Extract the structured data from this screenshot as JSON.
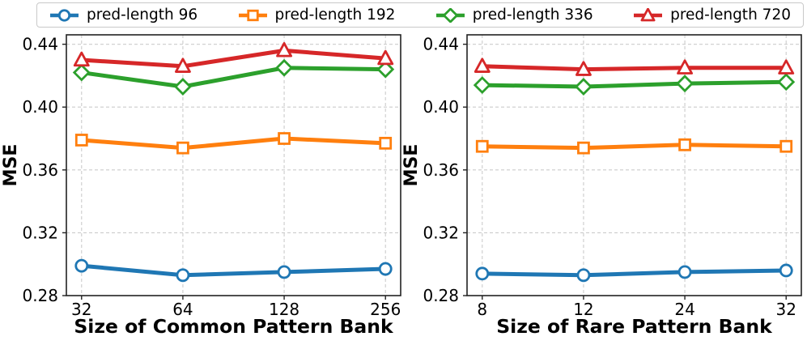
{
  "figure": {
    "ylabel": "MSE",
    "background": "#ffffff",
    "grid_color": "#cccccc",
    "spine_color": "#222222",
    "text_color": "#000000"
  },
  "legend": {
    "position": "top-shared",
    "items": [
      {
        "label": "pred-length 96",
        "marker": "circle",
        "color": "#1f77b4"
      },
      {
        "label": "pred-length 192",
        "marker": "square",
        "color": "#ff7f0e"
      },
      {
        "label": "pred-length 336",
        "marker": "diamond",
        "color": "#2ca02c"
      },
      {
        "label": "pred-length 720",
        "marker": "triangle",
        "color": "#d62728"
      }
    ]
  },
  "chart_data": [
    {
      "type": "line",
      "title": "",
      "xlabel": "Size of Common Pattern Bank",
      "ylabel": "MSE",
      "categories": [
        "32",
        "64",
        "128",
        "256"
      ],
      "yticks": [
        0.28,
        0.32,
        0.36,
        0.4,
        0.44
      ],
      "ylim": [
        0.28,
        0.446
      ],
      "grid": true,
      "series": [
        {
          "name": "pred-length 96",
          "color": "#1f77b4",
          "marker": "circle",
          "values": [
            0.299,
            0.293,
            0.295,
            0.297
          ]
        },
        {
          "name": "pred-length 192",
          "color": "#ff7f0e",
          "marker": "square",
          "values": [
            0.379,
            0.374,
            0.38,
            0.377
          ]
        },
        {
          "name": "pred-length 336",
          "color": "#2ca02c",
          "marker": "diamond",
          "values": [
            0.422,
            0.413,
            0.425,
            0.424
          ]
        },
        {
          "name": "pred-length 720",
          "color": "#d62728",
          "marker": "triangle",
          "values": [
            0.43,
            0.426,
            0.436,
            0.431
          ]
        }
      ]
    },
    {
      "type": "line",
      "title": "",
      "xlabel": "Size of Rare Pattern Bank",
      "ylabel": "MSE",
      "categories": [
        "8",
        "12",
        "24",
        "32"
      ],
      "yticks": [
        0.28,
        0.32,
        0.36,
        0.4,
        0.44
      ],
      "ylim": [
        0.28,
        0.446
      ],
      "grid": true,
      "series": [
        {
          "name": "pred-length 96",
          "color": "#1f77b4",
          "marker": "circle",
          "values": [
            0.294,
            0.293,
            0.295,
            0.296
          ]
        },
        {
          "name": "pred-length 192",
          "color": "#ff7f0e",
          "marker": "square",
          "values": [
            0.375,
            0.374,
            0.376,
            0.375
          ]
        },
        {
          "name": "pred-length 336",
          "color": "#2ca02c",
          "marker": "diamond",
          "values": [
            0.414,
            0.413,
            0.415,
            0.416
          ]
        },
        {
          "name": "pred-length 720",
          "color": "#d62728",
          "marker": "triangle",
          "values": [
            0.426,
            0.424,
            0.425,
            0.425
          ]
        }
      ]
    }
  ]
}
